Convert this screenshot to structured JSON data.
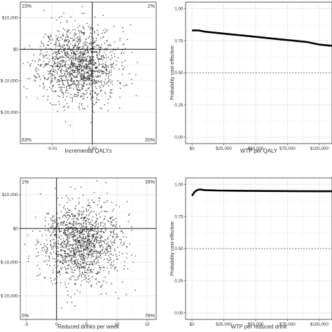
{
  "colors": {
    "panel_border": "#333333",
    "grid_major": "#e6e6e6",
    "grid_minor": "#f3f3f3",
    "points": "#222222",
    "curve": "#000000",
    "reference": "#555555",
    "text": "#333333"
  },
  "chart_data": [
    {
      "type": "scatter",
      "xlabel": "Incremental QALYs",
      "ylabel": "",
      "xlim": [
        -0.018,
        0.016
      ],
      "ylim": [
        -30000,
        15000
      ],
      "x_ticks": [
        -0.01,
        0.0
      ],
      "x_tick_labels": [
        "-0.01",
        "0.00"
      ],
      "y_ticks": [
        -20000,
        -10000,
        0,
        10000
      ],
      "y_tick_labels": [
        "$-20,000",
        "$-10,000",
        "$0",
        "$10,000"
      ],
      "reference_lines": {
        "x": 0,
        "y": 0
      },
      "quadrant_labels": {
        "top_left": "15%",
        "top_right": "2%",
        "bottom_left": "63%",
        "bottom_right": "20%"
      },
      "cloud": {
        "n": 1400,
        "x_mean": -0.0035,
        "x_sd": 0.0048,
        "y_mean": -5000,
        "y_sd": 6000,
        "seed": 11
      },
      "grid": true
    },
    {
      "type": "line",
      "xlabel": "WTP per QALY",
      "ylabel": "Probability cost-effective",
      "xlim": [
        -5000,
        110000
      ],
      "ylim": [
        -0.05,
        1.05
      ],
      "x_ticks": [
        0,
        25000,
        50000,
        75000,
        100000
      ],
      "x_tick_labels": [
        "$0",
        "$25,000",
        "$50,000",
        "$75,000",
        "$100,000"
      ],
      "y_ticks": [
        0,
        0.25,
        0.5,
        0.75,
        1.0
      ],
      "y_tick_labels": [
        "0.00",
        "0.25",
        "0.50",
        "0.75",
        "1.00"
      ],
      "reference_y": 0.5,
      "x": [
        0,
        5000,
        10000,
        20000,
        30000,
        40000,
        50000,
        60000,
        70000,
        80000,
        90000,
        100000,
        110000
      ],
      "y": [
        0.83,
        0.83,
        0.82,
        0.81,
        0.8,
        0.79,
        0.78,
        0.77,
        0.76,
        0.75,
        0.74,
        0.72,
        0.71
      ],
      "grid": true
    },
    {
      "type": "scatter",
      "xlabel": "Reduced drinks per week",
      "ylabel": "",
      "xlim": [
        -6,
        16.5
      ],
      "ylim": [
        -27000,
        15000
      ],
      "x_ticks": [
        -5,
        0,
        5,
        10,
        15
      ],
      "x_tick_labels": [
        "-5",
        "0",
        "5",
        "10",
        "15"
      ],
      "y_ticks": [
        -20000,
        -10000,
        0,
        10000
      ],
      "y_tick_labels": [
        "$-20,000",
        "$-10,000",
        "$0",
        "$10,000"
      ],
      "reference_lines": {
        "x": 0,
        "y": 0
      },
      "quadrant_labels": {
        "top_left": "1%",
        "top_right": "16%",
        "bottom_left": "5%",
        "bottom_right": "78%"
      },
      "cloud": {
        "n": 1400,
        "x_mean": 4.0,
        "x_sd": 3.2,
        "y_mean": -4500,
        "y_sd": 5800,
        "seed": 29
      },
      "grid": true
    },
    {
      "type": "line",
      "xlabel": "WTP per reduced drink",
      "ylabel": "Probability cost-effective",
      "xlim": [
        -5000,
        110000
      ],
      "ylim": [
        -0.05,
        1.05
      ],
      "x_ticks": [
        0,
        25000,
        50000,
        75000,
        100000
      ],
      "x_tick_labels": [
        "$0",
        "$25,000",
        "$50,000",
        "$75,000",
        "$100,000"
      ],
      "y_ticks": [
        0,
        0.25,
        0.5,
        0.75,
        1.0
      ],
      "y_tick_labels": [
        "0.00",
        "0.25",
        "0.50",
        "0.75",
        "1.00"
      ],
      "reference_y": 0.5,
      "x": [
        0,
        2000,
        4000,
        6000,
        8000,
        10000,
        20000,
        40000,
        60000,
        80000,
        100000,
        110000
      ],
      "y": [
        0.91,
        0.94,
        0.955,
        0.96,
        0.958,
        0.955,
        0.952,
        0.95,
        0.948,
        0.947,
        0.946,
        0.946
      ],
      "grid": true
    }
  ]
}
